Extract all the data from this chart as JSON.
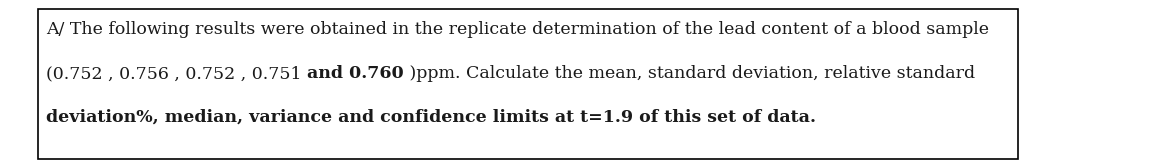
{
  "line1": "A/ The following results were obtained in the replicate determination of the lead content of a blood sample",
  "line2_p1": "(0.752 , 0.756 , 0.752 , 0.751 ",
  "line2_bold": "and 0.760",
  "line2_p2": " )ppm. Calculate the mean, standard deviation, relative standard",
  "line3_normal": "deviation%, median, variance and confidence limits at t=1.9 of this set of data",
  "line3_bold": ".",
  "font_size": 12.5,
  "text_color": "#1a1a1a",
  "bg_color": "#ffffff",
  "border_color": "#000000",
  "fig_width": 11.68,
  "fig_height": 1.67,
  "dpi": 100
}
